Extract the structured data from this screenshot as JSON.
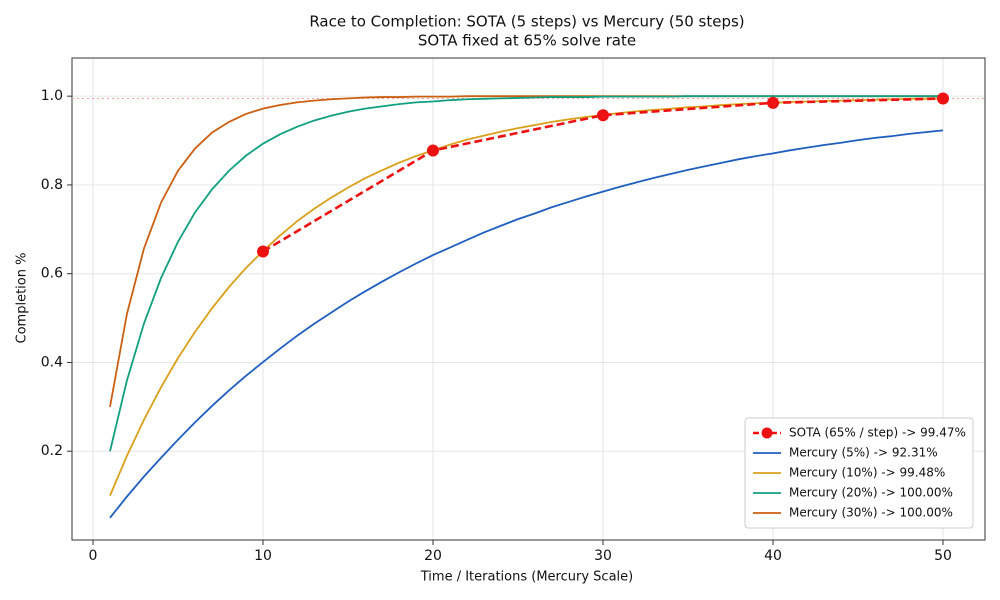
{
  "chart_data": {
    "type": "line",
    "title": "Race to Completion: SOTA (5 steps) vs Mercury (50 steps)",
    "subtitle": "SOTA fixed at 65% solve rate",
    "x_label": "Time / Iterations (Mercury Scale)",
    "y_label": "Completion %",
    "xlim": [
      -1.235,
      52.47
    ],
    "ylim": [
      0,
      1.086
    ],
    "xticks": [
      0,
      10,
      20,
      30,
      40,
      50
    ],
    "yticks": [
      {
        "value": 0.2,
        "label": "0.2"
      },
      {
        "value": 0.4,
        "label": "0.4"
      },
      {
        "value": 0.6,
        "label": "0.6"
      },
      {
        "value": 0.8,
        "label": "0.8"
      },
      {
        "value": 1,
        "label": "1.0"
      }
    ],
    "grid": true,
    "legend": "lower right",
    "hline": {
      "value": 0.9947,
      "color": "#f4a0a0"
    },
    "series": [
      {
        "name": "SOTA (65% / step) -> 99.47%",
        "color": "#ee1111",
        "dashed": true,
        "markers": true,
        "x": [
          10,
          20,
          30,
          40,
          50
        ],
        "values": [
          0.65,
          0.8775,
          0.9571,
          0.985,
          0.9947
        ]
      },
      {
        "name": "Mercury (5%) -> 92.31%",
        "color": "#1f5fbf",
        "x": [
          1,
          2,
          3,
          4,
          5,
          6,
          7,
          8,
          9,
          10,
          11,
          12,
          13,
          14,
          15,
          16,
          17,
          18,
          19,
          20,
          21,
          22,
          23,
          24,
          25,
          26,
          27,
          28,
          29,
          30,
          31,
          32,
          33,
          34,
          35,
          36,
          37,
          38,
          39,
          40,
          41,
          42,
          43,
          44,
          45,
          46,
          47,
          48,
          49,
          50
        ],
        "values": [
          0.05,
          0.098,
          0.143,
          0.185,
          0.226,
          0.265,
          0.302,
          0.337,
          0.37,
          0.401,
          0.431,
          0.46,
          0.487,
          0.512,
          0.537,
          0.56,
          0.582,
          0.603,
          0.623,
          0.642,
          0.659,
          0.676,
          0.693,
          0.708,
          0.723,
          0.736,
          0.75,
          0.762,
          0.774,
          0.785,
          0.796,
          0.806,
          0.816,
          0.825,
          0.834,
          0.842,
          0.85,
          0.858,
          0.865,
          0.871,
          0.878,
          0.884,
          0.89,
          0.895,
          0.901,
          0.906,
          0.91,
          0.915,
          0.919,
          0.923
        ]
      },
      {
        "name": "Mercury (10%) -> 99.48%",
        "color": "#daa01a",
        "x": [
          1,
          2,
          3,
          4,
          5,
          6,
          7,
          8,
          9,
          10,
          11,
          12,
          13,
          14,
          15,
          16,
          17,
          18,
          19,
          20,
          21,
          22,
          23,
          24,
          25,
          26,
          27,
          28,
          29,
          30,
          31,
          32,
          33,
          34,
          35,
          36,
          37,
          38,
          39,
          40,
          41,
          42,
          43,
          44,
          45,
          46,
          47,
          48,
          49,
          50
        ],
        "values": [
          0.1,
          0.19,
          0.271,
          0.344,
          0.41,
          0.469,
          0.522,
          0.57,
          0.613,
          0.651,
          0.686,
          0.718,
          0.746,
          0.771,
          0.794,
          0.815,
          0.833,
          0.85,
          0.865,
          0.878,
          0.891,
          0.902,
          0.911,
          0.92,
          0.928,
          0.935,
          0.942,
          0.948,
          0.953,
          0.958,
          0.962,
          0.966,
          0.969,
          0.972,
          0.975,
          0.977,
          0.98,
          0.982,
          0.984,
          0.985,
          0.987,
          0.988,
          0.989,
          0.99,
          0.991,
          0.992,
          0.993,
          0.994,
          0.994,
          0.995
        ]
      },
      {
        "name": "Mercury (20%) -> 100.00%",
        "color": "#10a080",
        "x": [
          1,
          2,
          3,
          4,
          5,
          6,
          7,
          8,
          9,
          10,
          11,
          12,
          13,
          14,
          15,
          16,
          17,
          18,
          19,
          20,
          21,
          22,
          23,
          24,
          25,
          26,
          27,
          28,
          29,
          30,
          31,
          32,
          33,
          34,
          35,
          36,
          37,
          38,
          39,
          40,
          41,
          42,
          43,
          44,
          45,
          46,
          47,
          48,
          49,
          50
        ],
        "values": [
          0.2,
          0.36,
          0.488,
          0.59,
          0.672,
          0.738,
          0.79,
          0.832,
          0.866,
          0.893,
          0.914,
          0.931,
          0.945,
          0.956,
          0.965,
          0.972,
          0.977,
          0.982,
          0.986,
          0.988,
          0.991,
          0.993,
          0.994,
          0.995,
          0.996,
          0.997,
          0.998,
          0.998,
          0.998,
          0.999,
          0.999,
          0.999,
          0.999,
          0.999,
          1.0,
          1.0,
          1.0,
          1.0,
          1.0,
          1.0,
          1.0,
          1.0,
          1.0,
          1.0,
          1.0,
          1.0,
          1.0,
          1.0,
          1.0,
          1.0
        ]
      },
      {
        "name": "Mercury (30%) -> 100.00%",
        "color": "#cc6010",
        "x": [
          1,
          2,
          3,
          4,
          5,
          6,
          7,
          8,
          9,
          10,
          11,
          12,
          13,
          14,
          15,
          16,
          17,
          18,
          19,
          20,
          21,
          22,
          23,
          24,
          25,
          26,
          27,
          28,
          29,
          30,
          31,
          32,
          33,
          34,
          35,
          36,
          37,
          38,
          39,
          40,
          41,
          42,
          43,
          44,
          45,
          46,
          47,
          48,
          49,
          50
        ],
        "values": [
          0.3,
          0.51,
          0.657,
          0.76,
          0.832,
          0.882,
          0.918,
          0.942,
          0.96,
          0.972,
          0.98,
          0.986,
          0.99,
          0.993,
          0.995,
          0.997,
          0.998,
          0.998,
          0.999,
          0.999,
          0.999,
          1.0,
          1.0,
          1.0,
          1.0,
          1.0,
          1.0,
          1.0,
          1.0,
          1.0,
          1.0,
          1.0,
          1.0,
          1.0,
          1.0,
          1.0,
          1.0,
          1.0,
          1.0,
          1.0,
          1.0,
          1.0,
          1.0,
          1.0,
          1.0,
          1.0,
          1.0,
          1.0,
          1.0,
          1.0
        ]
      }
    ]
  }
}
